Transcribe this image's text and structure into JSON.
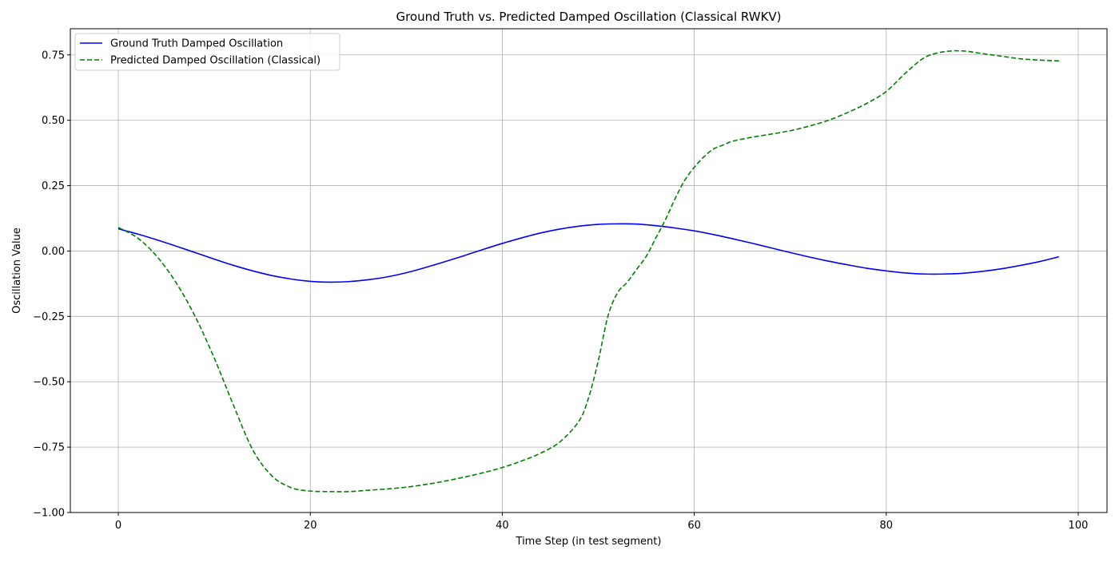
{
  "chart_data": {
    "type": "line",
    "title": "Ground Truth vs. Predicted Damped Oscillation (Classical RWKV)",
    "xlabel": "Time Step (in test segment)",
    "ylabel": "Oscillation Value",
    "xlim": [
      -5,
      103
    ],
    "ylim": [
      -1.0,
      0.85
    ],
    "xticks": [
      0,
      20,
      40,
      60,
      80,
      100
    ],
    "xtick_labels": [
      "0",
      "20",
      "40",
      "60",
      "80",
      "100"
    ],
    "yticks": [
      -1.0,
      -0.75,
      -0.5,
      -0.25,
      0.0,
      0.25,
      0.5,
      0.75
    ],
    "ytick_labels": [
      "−1.00",
      "−0.75",
      "−0.50",
      "−0.25",
      "0.00",
      "0.25",
      "0.50",
      "0.75"
    ],
    "grid": true,
    "legend_position": "top-left",
    "series": [
      {
        "name": "Ground Truth Damped Oscillation",
        "color": "#0000ff",
        "style": "solid",
        "x": [
          0,
          2,
          4,
          6,
          8,
          10,
          12,
          14,
          16,
          18,
          20,
          22,
          24,
          26,
          28,
          30,
          32,
          34,
          36,
          38,
          40,
          42,
          44,
          46,
          48,
          50,
          52,
          54,
          56,
          58,
          60,
          62,
          64,
          66,
          68,
          70,
          72,
          74,
          76,
          78,
          80,
          82,
          84,
          86,
          88,
          90,
          92,
          94,
          96,
          98
        ],
        "y": [
          0.085,
          0.065,
          0.043,
          0.019,
          -0.006,
          -0.031,
          -0.055,
          -0.076,
          -0.094,
          -0.107,
          -0.116,
          -0.119,
          -0.117,
          -0.11,
          -0.099,
          -0.083,
          -0.063,
          -0.041,
          -0.018,
          0.006,
          0.029,
          0.05,
          0.069,
          0.084,
          0.095,
          0.102,
          0.104,
          0.103,
          0.097,
          0.088,
          0.077,
          0.063,
          0.047,
          0.03,
          0.012,
          -0.006,
          -0.023,
          -0.039,
          -0.053,
          -0.066,
          -0.076,
          -0.084,
          -0.088,
          -0.088,
          -0.085,
          -0.078,
          -0.068,
          -0.055,
          -0.04,
          -0.022
        ]
      },
      {
        "name": "Predicted Damped Oscillation (Classical)",
        "color": "#008000",
        "style": "dashed",
        "x": [
          0,
          2,
          4,
          6,
          8,
          10,
          12,
          14,
          16,
          18,
          20,
          22,
          24,
          26,
          28,
          30,
          32,
          34,
          36,
          38,
          40,
          42,
          44,
          46,
          48,
          49,
          50,
          51,
          52,
          53,
          54,
          55,
          56,
          57,
          58,
          59,
          60,
          61,
          62,
          63,
          64,
          66,
          68,
          70,
          72,
          74,
          76,
          78,
          80,
          82,
          84,
          86,
          88,
          90,
          92,
          94,
          96,
          98
        ],
        "y": [
          0.09,
          0.05,
          -0.02,
          -0.12,
          -0.25,
          -0.41,
          -0.59,
          -0.76,
          -0.86,
          -0.905,
          -0.918,
          -0.92,
          -0.92,
          -0.915,
          -0.91,
          -0.903,
          -0.893,
          -0.88,
          -0.865,
          -0.848,
          -0.828,
          -0.803,
          -0.773,
          -0.73,
          -0.65,
          -0.56,
          -0.42,
          -0.25,
          -0.16,
          -0.12,
          -0.07,
          -0.02,
          0.05,
          0.12,
          0.2,
          0.27,
          0.32,
          0.36,
          0.39,
          0.405,
          0.42,
          0.435,
          0.447,
          0.46,
          0.478,
          0.5,
          0.53,
          0.565,
          0.61,
          0.68,
          0.74,
          0.762,
          0.765,
          0.755,
          0.745,
          0.735,
          0.73,
          0.727
        ]
      }
    ]
  }
}
